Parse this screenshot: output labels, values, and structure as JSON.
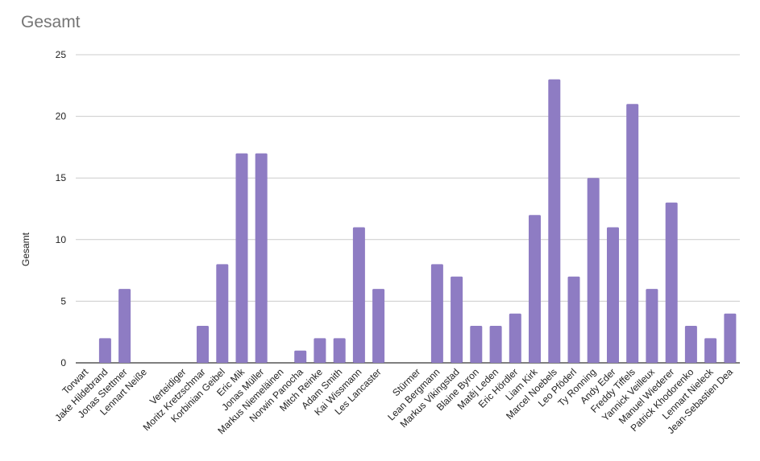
{
  "chart_data": {
    "type": "bar",
    "title": "Gesamt",
    "xlabel": "",
    "ylabel": "Gesamt",
    "ylim": [
      0,
      25
    ],
    "yticks": [
      0,
      5,
      10,
      15,
      20,
      25
    ],
    "grid": true,
    "legend": "none",
    "bar_color": "#8e7cc3",
    "categories": [
      "Torwart",
      "Jake Hildebrand",
      "Jonas Stettmer",
      "Lennart Neiße",
      "",
      "Verteidiger",
      "Moritz Kretzschmar",
      "Korbinian Geibel",
      "Eric Mik",
      "Jonas Müller",
      "Markus Niemeläinen",
      "Norwin Panocha",
      "Mitch Reinke",
      "Adam Smith",
      "Kai Wissmann",
      "Les Lancaster",
      "",
      "Stürmer",
      "Lean Bergmann",
      "Markus Vikingstad",
      "Blaine Byron",
      "Matěj Leden",
      "Eric Hördler",
      "Liam Kirk",
      "Marcel Noebels",
      "Leo Pföderl",
      "Ty Ronning",
      "Andy Eder",
      "Freddy Tiffels",
      "Yannick Veilleux",
      "Manuel Wiederer",
      "Patrick Khodorenko",
      "Lennart Nieleck",
      "Jean-Sebastien Dea"
    ],
    "values": [
      0,
      2,
      6,
      0,
      0,
      0,
      3,
      8,
      17,
      17,
      0,
      1,
      2,
      2,
      11,
      6,
      0,
      0,
      8,
      7,
      3,
      3,
      4,
      12,
      23,
      7,
      15,
      11,
      21,
      6,
      13,
      3,
      2,
      4
    ]
  }
}
